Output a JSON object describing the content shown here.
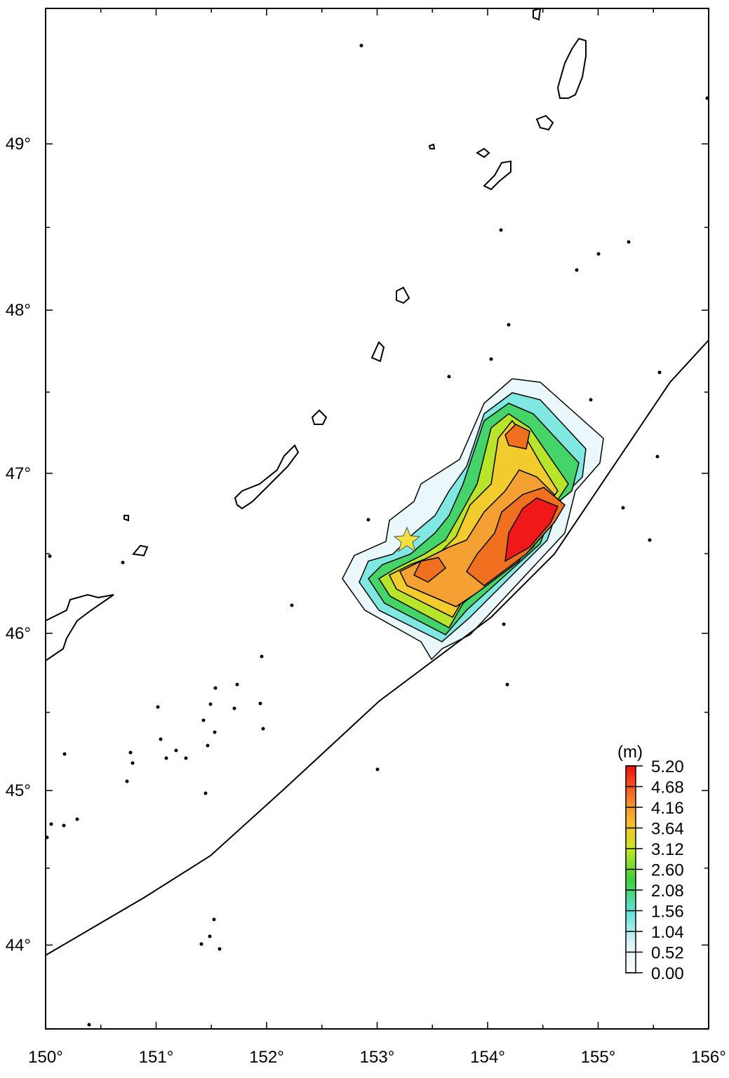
{
  "map": {
    "xlim": [
      150,
      156
    ],
    "ylim": [
      43.45,
      49.8
    ],
    "xticks": [
      {
        "value": 150,
        "label": "150°"
      },
      {
        "value": 151,
        "label": "151°"
      },
      {
        "value": 152,
        "label": "152°"
      },
      {
        "value": 153,
        "label": "153°"
      },
      {
        "value": 154,
        "label": "154°"
      },
      {
        "value": 155,
        "label": "155°"
      },
      {
        "value": 156,
        "label": "156°"
      }
    ],
    "yticks": [
      {
        "value": 44,
        "label": "44°"
      },
      {
        "value": 45,
        "label": "45°"
      },
      {
        "value": 46,
        "label": "46°"
      },
      {
        "value": 47,
        "label": "47°"
      },
      {
        "value": 48,
        "label": "48°"
      },
      {
        "value": 49,
        "label": "49°"
      }
    ],
    "colorbar": {
      "label": "(m)",
      "clim": [
        0,
        5.2
      ],
      "ticks": [
        {
          "value": 0,
          "label": "0.00"
        },
        {
          "value": 0.52,
          "label": "0.52"
        },
        {
          "value": 1.04,
          "label": "1.04"
        },
        {
          "value": 1.56,
          "label": "1.56"
        },
        {
          "value": 2.08,
          "label": "2.08"
        },
        {
          "value": 2.6,
          "label": "2.60"
        },
        {
          "value": 3.12,
          "label": "3.12"
        },
        {
          "value": 3.64,
          "label": "3.64"
        },
        {
          "value": 4.16,
          "label": "4.16"
        },
        {
          "value": 4.68,
          "label": "4.68"
        },
        {
          "value": 5.2,
          "label": "5.20"
        }
      ]
    }
  }
}
